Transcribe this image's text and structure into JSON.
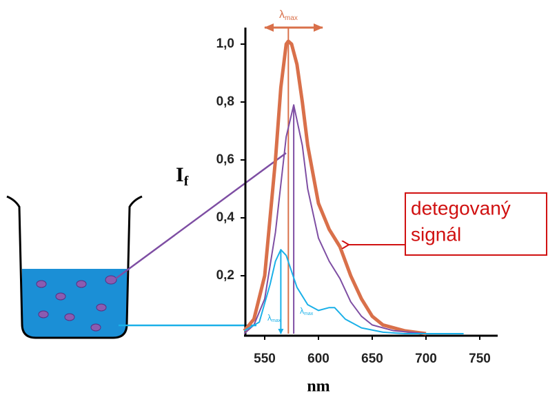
{
  "chart_data": {
    "type": "line",
    "x_label": "nm",
    "y_label": {
      "symbol": "I",
      "subscript": "f"
    },
    "lambda_label": {
      "symbol": "λ",
      "subscript": "max"
    },
    "annotation": [
      "detegovaný",
      "signál"
    ],
    "xlim": [
      531,
      765
    ],
    "ylim": [
      0,
      1.06
    ],
    "xticks": [
      550,
      600,
      650,
      700,
      750
    ],
    "yticks": [
      {
        "value": 0.2,
        "label": "0,2"
      },
      {
        "value": 0.4,
        "label": "0,4"
      },
      {
        "value": 0.6,
        "label": "0,6"
      },
      {
        "value": 0.8,
        "label": "0,8"
      },
      {
        "value": 1.0,
        "label": "1,0"
      }
    ],
    "series": [
      {
        "color": "#d9704a",
        "x": [
          531,
          540,
          550,
          560,
          565,
          570,
          572,
          575,
          580,
          585,
          590,
          600,
          610,
          620,
          630,
          640,
          650,
          660,
          680,
          700
        ],
        "values": [
          0.01,
          0.05,
          0.2,
          0.6,
          0.85,
          1.0,
          1.01,
          1.0,
          0.93,
          0.8,
          0.65,
          0.45,
          0.36,
          0.3,
          0.2,
          0.12,
          0.06,
          0.03,
          0.01,
          0
        ]
      },
      {
        "color": "#7e4ea3",
        "x": [
          531,
          540,
          550,
          560,
          570,
          577,
          585,
          590,
          600,
          610,
          620,
          630,
          640,
          650,
          670,
          700
        ],
        "values": [
          0,
          0.03,
          0.12,
          0.35,
          0.68,
          0.79,
          0.65,
          0.5,
          0.33,
          0.25,
          0.19,
          0.11,
          0.06,
          0.03,
          0.01,
          0
        ]
      },
      {
        "color": "#1ab0e8",
        "x": [
          531,
          545,
          555,
          560,
          565,
          570,
          580,
          590,
          600,
          610,
          615,
          625,
          640,
          660,
          680,
          735
        ],
        "values": [
          0.01,
          0.04,
          0.17,
          0.25,
          0.29,
          0.27,
          0.16,
          0.1,
          0.08,
          0.09,
          0.09,
          0.05,
          0.02,
          0.005,
          0,
          0
        ]
      }
    ]
  }
}
